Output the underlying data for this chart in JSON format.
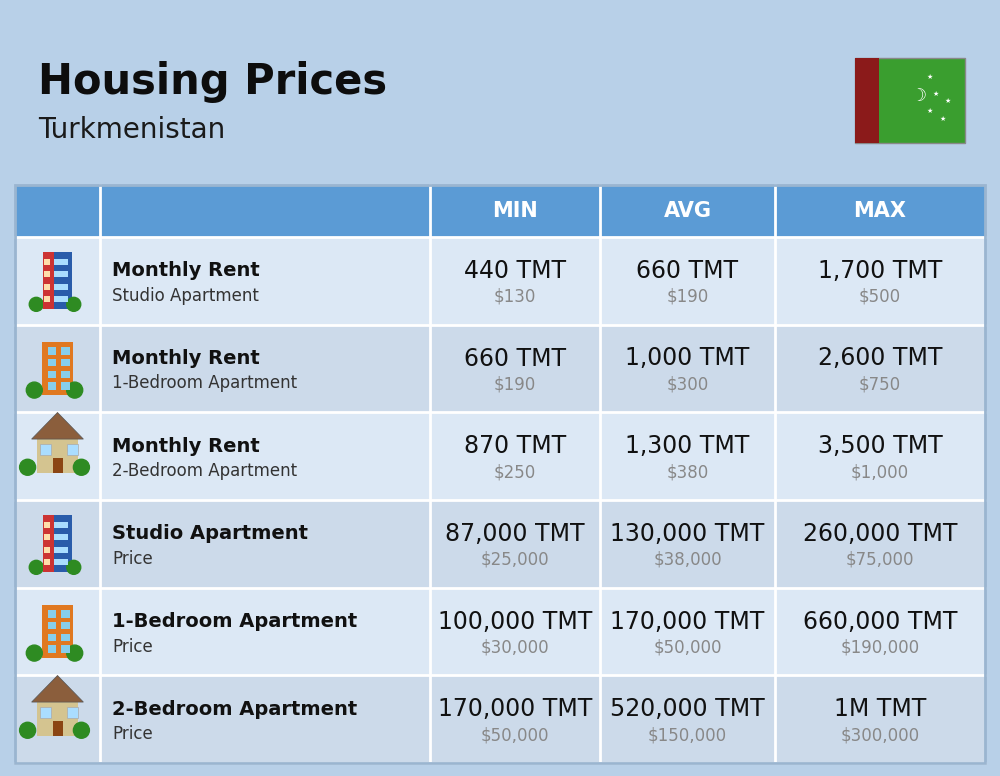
{
  "title": "Housing Prices",
  "subtitle": "Turkmenistan",
  "bg_color": "#b8d0e8",
  "header_bg": "#5b9bd5",
  "header_text_color": "#ffffff",
  "row_bg_even": "#dce8f5",
  "row_bg_odd": "#ccdaea",
  "separator_color": "#ffffff",
  "col_headers": [
    "MIN",
    "AVG",
    "MAX"
  ],
  "rows": [
    {
      "label_bold": "Monthly Rent",
      "label_sub": "Studio Apartment",
      "icon_type": "studio_blue",
      "min_tmt": "440 TMT",
      "min_usd": "$130",
      "avg_tmt": "660 TMT",
      "avg_usd": "$190",
      "max_tmt": "1,700 TMT",
      "max_usd": "$500"
    },
    {
      "label_bold": "Monthly Rent",
      "label_sub": "1-Bedroom Apartment",
      "icon_type": "bedroom1_orange",
      "min_tmt": "660 TMT",
      "min_usd": "$190",
      "avg_tmt": "1,000 TMT",
      "avg_usd": "$300",
      "max_tmt": "2,600 TMT",
      "max_usd": "$750"
    },
    {
      "label_bold": "Monthly Rent",
      "label_sub": "2-Bedroom Apartment",
      "icon_type": "bedroom2_house",
      "min_tmt": "870 TMT",
      "min_usd": "$250",
      "avg_tmt": "1,300 TMT",
      "avg_usd": "$380",
      "max_tmt": "3,500 TMT",
      "max_usd": "$1,000"
    },
    {
      "label_bold": "Studio Apartment",
      "label_sub": "Price",
      "icon_type": "studio_blue",
      "min_tmt": "87,000 TMT",
      "min_usd": "$25,000",
      "avg_tmt": "130,000 TMT",
      "avg_usd": "$38,000",
      "max_tmt": "260,000 TMT",
      "max_usd": "$75,000"
    },
    {
      "label_bold": "1-Bedroom Apartment",
      "label_sub": "Price",
      "icon_type": "bedroom1_orange",
      "min_tmt": "100,000 TMT",
      "min_usd": "$30,000",
      "avg_tmt": "170,000 TMT",
      "avg_usd": "$50,000",
      "max_tmt": "660,000 TMT",
      "max_usd": "$190,000"
    },
    {
      "label_bold": "2-Bedroom Apartment",
      "label_sub": "Price",
      "icon_type": "bedroom2_house",
      "min_tmt": "170,000 TMT",
      "min_usd": "$50,000",
      "avg_tmt": "520,000 TMT",
      "avg_usd": "$150,000",
      "max_tmt": "1M TMT",
      "max_usd": "$300,000"
    }
  ],
  "title_fontsize": 30,
  "subtitle_fontsize": 20,
  "header_fontsize": 15,
  "cell_tmt_fontsize": 17,
  "cell_usd_fontsize": 12,
  "label_bold_fontsize": 14,
  "label_sub_fontsize": 12
}
